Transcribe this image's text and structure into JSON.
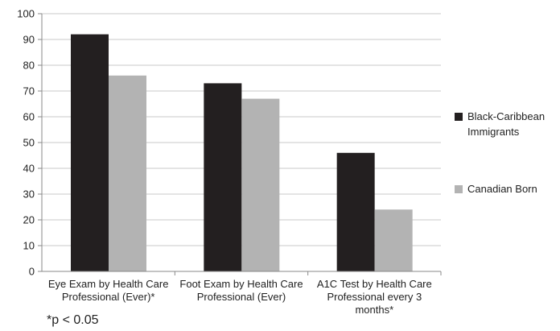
{
  "chart_data": {
    "type": "bar",
    "categories": [
      [
        "Eye Exam by Health Care",
        "Professional (Ever)*"
      ],
      [
        "Foot Exam by Health Care",
        "Professional (Ever)"
      ],
      [
        "A1C Test by Health Care",
        "Professional every 3",
        "months*"
      ]
    ],
    "series": [
      {
        "name": "Black-Caribbean Immigrants",
        "legend_lines": [
          "Black-Caribbean",
          "Immigrants"
        ],
        "color": "#231f20",
        "values": [
          92,
          73,
          46
        ]
      },
      {
        "name": "Canadian Born",
        "legend_lines": [
          "Canadian Born"
        ],
        "color": "#b3b3b3",
        "values": [
          76,
          67,
          24
        ]
      }
    ],
    "ylim": [
      0,
      100
    ],
    "yticks": [
      0,
      10,
      20,
      30,
      40,
      50,
      60,
      70,
      80,
      90,
      100
    ],
    "grid": true,
    "legend": "right"
  },
  "footnote": "*p < 0.05"
}
